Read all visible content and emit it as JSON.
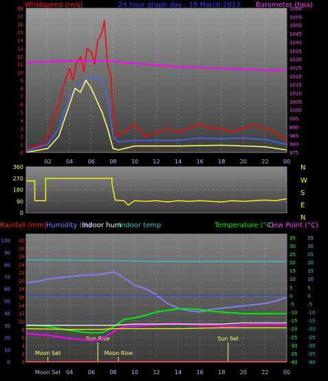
{
  "chart_data": [
    {
      "type": "line",
      "panel": "wind-pressure",
      "title": "24 hour graph day : 19 March 2013",
      "ylabel": "Windspeed (m/s)",
      "ylabel_right": "Barometer (hpa)",
      "x_ticks": [
        "02",
        "04",
        "06",
        "08",
        "10",
        "12",
        "14",
        "16",
        "18",
        "20",
        "22",
        "00"
      ],
      "ylim": [
        0,
        18
      ],
      "y_ticks": [
        0,
        1,
        2,
        3,
        4,
        5,
        6,
        7,
        8,
        9,
        10,
        11,
        12,
        13,
        14,
        15,
        16,
        17,
        18
      ],
      "ylim_right": [
        975,
        1060
      ],
      "y_ticks_right": [
        975,
        980,
        985,
        990,
        995,
        1000,
        1005,
        1010,
        1015,
        1020,
        1025,
        1030,
        1035,
        1040,
        1045,
        1050,
        1055,
        1060
      ],
      "series": [
        {
          "name": "Windspeed (m/s)",
          "color": "#ff0000",
          "axis": "left",
          "x": [
            0,
            1,
            1.5,
            2,
            2.5,
            3,
            3.3,
            3.6,
            4,
            4.3,
            4.6,
            5,
            5.3,
            5.6,
            6,
            6.3,
            6.6,
            7,
            7.2,
            7.5,
            7.8,
            8,
            8.3,
            9,
            10,
            11,
            12,
            13,
            14,
            15,
            16,
            17,
            18,
            19,
            20,
            21,
            22,
            23,
            24
          ],
          "values": [
            0.5,
            0.8,
            1,
            2,
            4,
            6,
            7.5,
            9,
            10.5,
            9,
            11,
            12,
            10,
            13,
            12.5,
            11,
            14,
            15,
            16.5,
            11,
            9.5,
            5.5,
            2,
            2.5,
            3.5,
            2,
            2.5,
            3,
            2.5,
            3,
            3.5,
            3,
            3,
            2.5,
            3,
            3.5,
            3,
            2.5,
            1.5
          ]
        },
        {
          "name": "Wind average",
          "color": "#4466ff",
          "axis": "left",
          "x": [
            0,
            2,
            3,
            4,
            5,
            6,
            7,
            7.5,
            8,
            8.5,
            10,
            14,
            16,
            18,
            20,
            22,
            24
          ],
          "values": [
            0.2,
            1,
            3,
            7,
            8.5,
            9.5,
            9,
            7,
            2,
            1.3,
            1.5,
            1.5,
            1.8,
            1.7,
            1.8,
            1.6,
            1
          ]
        },
        {
          "name": "Gust (yellow)",
          "color": "#ffff66",
          "axis": "left",
          "x": [
            0,
            2,
            3,
            3.5,
            4,
            4.5,
            5,
            5.5,
            6,
            6.5,
            7,
            7.5,
            8,
            8.5,
            10,
            14,
            18,
            22,
            24
          ],
          "values": [
            0,
            0.5,
            2,
            4,
            6,
            8,
            7.5,
            9,
            8,
            6.5,
            5,
            3,
            0.5,
            0.3,
            0.8,
            0.8,
            0.9,
            0.7,
            0.3
          ]
        },
        {
          "name": "Barometer (hpa)",
          "color": "#ff00ff",
          "axis": "right",
          "x": [
            0,
            2,
            4,
            6,
            8,
            9,
            10,
            12,
            14,
            16,
            18,
            20,
            22,
            24
          ],
          "values": [
            1028,
            1028.5,
            1029,
            1029,
            1028.8,
            1028,
            1027.5,
            1026.5,
            1025.5,
            1025,
            1024.5,
            1024,
            1023.5,
            1023.5
          ]
        }
      ]
    },
    {
      "type": "line",
      "panel": "wind-direction",
      "ylim": [
        0,
        360
      ],
      "y_ticks": [
        0,
        90,
        180,
        270,
        360
      ],
      "right_labels": [
        "N",
        "W",
        "S",
        "E",
        "N"
      ],
      "series": [
        {
          "name": "Wind direction",
          "color": "#ffff00",
          "x": [
            0,
            0.8,
            0.8,
            1.8,
            1.8,
            7.9,
            7.9,
            8.2,
            9,
            9.4,
            10,
            11,
            12,
            13,
            14,
            15,
            16,
            17,
            18,
            19,
            20,
            21,
            22,
            23,
            24
          ],
          "values": [
            250,
            250,
            95,
            95,
            270,
            270,
            230,
            100,
            95,
            60,
            95,
            90,
            95,
            85,
            95,
            90,
            95,
            90,
            85,
            95,
            90,
            95,
            100,
            95,
            110
          ]
        }
      ]
    },
    {
      "type": "line",
      "panel": "temp-humidity",
      "labels": {
        "rainfall": "Rainfall (mm)",
        "humidity": "Humidity (%)",
        "indoor_hum": "Indoor hum",
        "indoor_temp": "Indoor temp",
        "temperature": "Temperature (°C)",
        "dew_point": "Dew Point (°C)"
      },
      "y_ticks_humidity": [
        0,
        10,
        20,
        30,
        40,
        50,
        60,
        70,
        80,
        90,
        100
      ],
      "y_ticks_rain": [
        0,
        2,
        4,
        6,
        8,
        10,
        12,
        14,
        16,
        18,
        20,
        22,
        24,
        26,
        28,
        30
      ],
      "y_ticks_temp": [
        -40,
        -35,
        -30,
        -25,
        -20,
        -15,
        -10,
        -5,
        0,
        5,
        10,
        15,
        20,
        25,
        30,
        35
      ],
      "annotations": [
        {
          "text": "Moon Set",
          "x": 2
        },
        {
          "text": "Sun Rise",
          "x": 6.6
        },
        {
          "text": "Moon Rise",
          "x": 8.5
        },
        {
          "text": "Sun Set",
          "x": 18.6
        }
      ],
      "x_first_tick": "Moon Set",
      "series": [
        {
          "name": "Humidity (%)",
          "color": "#8080ff",
          "axis": "humidity",
          "x": [
            0,
            1,
            2,
            3,
            4,
            5,
            6,
            7,
            7.5,
            8,
            8.5,
            9,
            10,
            11,
            12,
            13,
            14,
            15,
            16,
            17,
            18,
            19,
            20,
            21,
            22,
            23,
            24
          ],
          "values": [
            65,
            66,
            68,
            69,
            70,
            71,
            71.5,
            72,
            73,
            74,
            72,
            69,
            63,
            60,
            55,
            48,
            44,
            42,
            41,
            43,
            44,
            45,
            46,
            47,
            48,
            50,
            53
          ]
        },
        {
          "name": "Indoor temp",
          "color": "#33cccc",
          "axis": "temp",
          "x": [
            0,
            4,
            8,
            12,
            16,
            20,
            24
          ],
          "values": [
            21.5,
            21.2,
            21,
            20.5,
            20.5,
            20.5,
            20.5
          ]
        },
        {
          "name": "Temperature (°C)",
          "color": "#00ee00",
          "axis": "temp",
          "x": [
            0,
            1,
            2,
            3,
            4,
            5,
            6,
            7,
            7.5,
            8,
            8.5,
            9,
            10,
            11,
            12,
            13,
            14,
            15,
            16,
            17,
            18,
            19,
            20,
            21,
            22,
            23,
            24
          ],
          "values": [
            -18,
            -18,
            -18.5,
            -20,
            -21,
            -22,
            -22.5,
            -22.5,
            -21,
            -19,
            -17,
            -14.5,
            -13.5,
            -12,
            -10,
            -9,
            -8,
            -8,
            -8.5,
            -9.5,
            -10,
            -10.5,
            -11,
            -11,
            -11,
            -11,
            -11
          ]
        },
        {
          "name": "Dew Point (°C)",
          "color": "#ff00ff",
          "axis": "temp",
          "x": [
            0,
            1,
            2,
            3,
            4,
            5,
            6,
            7,
            7.5,
            8,
            8.5,
            9,
            10,
            11,
            12,
            13,
            14,
            15,
            16,
            17,
            18,
            19,
            20,
            21,
            22,
            23,
            24
          ],
          "values": [
            -23,
            -23.5,
            -24,
            -25,
            -26,
            -26.5,
            -27,
            -26.5,
            -24,
            -22,
            -20,
            -19,
            -18.5,
            -18,
            -17.5,
            -17,
            -17,
            -17.5,
            -18,
            -18,
            -18.5,
            -18.5,
            -18,
            -17.5,
            -17.5,
            -17.5,
            -17.5
          ]
        },
        {
          "name": "Indoor hum",
          "color": "#ffffff",
          "axis": "humidity",
          "x": [
            0,
            4,
            8,
            10,
            12,
            14,
            16,
            18,
            20,
            22,
            24
          ],
          "values": [
            30,
            30,
            30,
            31,
            31,
            31,
            31,
            31,
            32,
            32,
            32
          ]
        },
        {
          "name": "Yellow reference",
          "color": "#ffff00",
          "axis": "temp",
          "x": [
            0,
            4,
            7,
            8,
            10,
            14,
            18,
            22,
            24
          ],
          "values": [
            -20,
            -20.5,
            -20.5,
            -20,
            -20,
            -20,
            -19.5,
            -19.5,
            -19.5
          ]
        },
        {
          "name": "Rainfall (mm)",
          "color": "#ff2222",
          "axis": "rain",
          "x": [
            0,
            24
          ],
          "values": [
            0,
            0
          ]
        },
        {
          "name": "Zero line",
          "color": "#2244ff",
          "axis": "temp",
          "x": [
            0,
            24
          ],
          "values": [
            0,
            0
          ]
        }
      ]
    }
  ]
}
